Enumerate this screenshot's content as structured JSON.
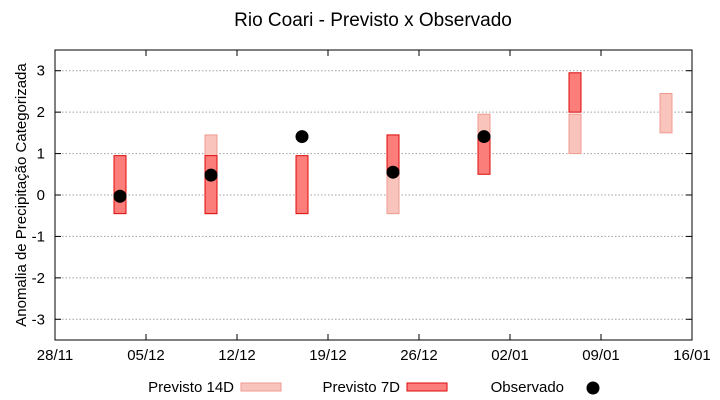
{
  "chart_data": {
    "type": "range-bar-with-points",
    "title": "Rio Coari - Previsto x Observado",
    "xlabel": "",
    "ylabel": "Anomalia de Precipitação Categorizada",
    "ylim": [
      -3.5,
      3.5
    ],
    "yticks": [
      -3,
      -2,
      -1,
      0,
      1,
      2,
      3
    ],
    "xticks": [
      {
        "day": 0,
        "label": "28/11"
      },
      {
        "day": 7,
        "label": "05/12"
      },
      {
        "day": 14,
        "label": "12/12"
      },
      {
        "day": 21,
        "label": "19/12"
      },
      {
        "day": 28,
        "label": "26/12"
      },
      {
        "day": 35,
        "label": "02/01"
      },
      {
        "day": 42,
        "label": "09/01"
      },
      {
        "day": 49,
        "label": "16/01"
      }
    ],
    "xlim": [
      0,
      49
    ],
    "grid": "horizontal-dotted",
    "series": [
      {
        "name": "Previsto 14D",
        "kind": "range",
        "color_fill": "#f8c4bc",
        "color_edge": "#f09a90",
        "points": [
          {
            "x": 12,
            "low": -0.45,
            "high": 1.45
          },
          {
            "x": 26,
            "low": -0.45,
            "high": 1.45
          },
          {
            "x": 33,
            "low": 1.0,
            "high": 1.95
          },
          {
            "x": 40,
            "low": 1.0,
            "high": 1.95
          },
          {
            "x": 47,
            "low": 1.5,
            "high": 2.45
          }
        ]
      },
      {
        "name": "Previsto 7D",
        "kind": "range",
        "color_fill": "#fb7e7a",
        "color_edge": "#dd0a0a",
        "points": [
          {
            "x": 5,
            "low": -0.45,
            "high": 0.95
          },
          {
            "x": 12,
            "low": -0.45,
            "high": 0.95
          },
          {
            "x": 19,
            "low": -0.45,
            "high": 0.95
          },
          {
            "x": 26,
            "low": 0.5,
            "high": 1.45
          },
          {
            "x": 33,
            "low": 0.5,
            "high": 1.45
          },
          {
            "x": 40,
            "low": 2.0,
            "high": 2.95
          }
        ]
      },
      {
        "name": "Observado",
        "kind": "point",
        "color_fill": "#000000",
        "points": [
          {
            "x": 5,
            "y": -0.03
          },
          {
            "x": 12,
            "y": 0.48
          },
          {
            "x": 19,
            "y": 1.41
          },
          {
            "x": 26,
            "y": 0.55
          },
          {
            "x": 33,
            "y": 1.41
          }
        ]
      }
    ],
    "legend": "bottom"
  }
}
